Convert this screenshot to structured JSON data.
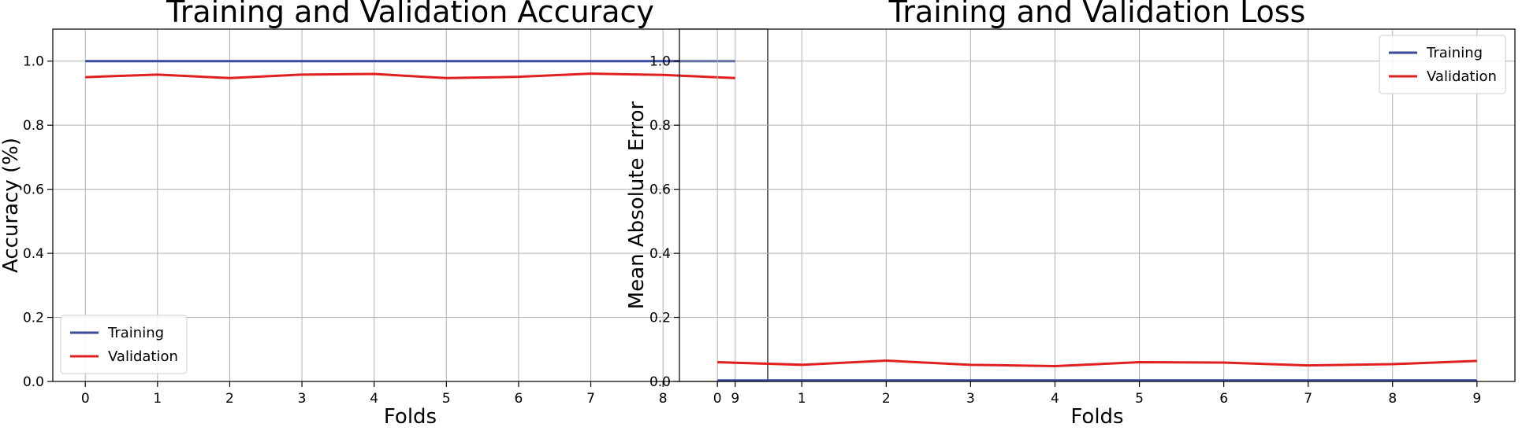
{
  "colors": {
    "training": "#3a4a9c",
    "validation": "#e02020"
  },
  "chart_data": [
    {
      "type": "line",
      "title": "Training and Validation Accuracy",
      "xlabel": "Folds",
      "ylabel": "Accuracy (%)",
      "x": [
        0,
        1,
        2,
        3,
        4,
        5,
        6,
        7,
        8,
        9
      ],
      "xticks": [
        "0",
        "1",
        "2",
        "3",
        "4",
        "5",
        "6",
        "7",
        "8",
        "9"
      ],
      "yticks": [
        "0.0",
        "0.2",
        "0.4",
        "0.6",
        "0.8",
        "1.0"
      ],
      "xlim": [
        -0.45,
        9.45
      ],
      "ylim": [
        0,
        1.1
      ],
      "grid": true,
      "legend_position": "bottom-left",
      "series": [
        {
          "name": "Training",
          "color": "#3a4a9c",
          "values": [
            1.0,
            1.0,
            1.0,
            1.0,
            1.0,
            1.0,
            1.0,
            1.0,
            1.0,
            1.0
          ]
        },
        {
          "name": "Validation",
          "color": "#e02020",
          "values": [
            0.95,
            0.958,
            0.947,
            0.958,
            0.96,
            0.947,
            0.951,
            0.961,
            0.957,
            0.947
          ]
        }
      ]
    },
    {
      "type": "line",
      "title": "Training and Validation Loss",
      "xlabel": "Folds",
      "ylabel": "Mean Absolute Error",
      "x": [
        0,
        1,
        2,
        3,
        4,
        5,
        6,
        7,
        8,
        9
      ],
      "xticks": [
        "0",
        "1",
        "2",
        "3",
        "4",
        "5",
        "6",
        "7",
        "8",
        "9"
      ],
      "yticks": [
        "0.0",
        "0.2",
        "0.4",
        "0.6",
        "0.8",
        "1.0"
      ],
      "xlim": [
        -0.45,
        9.45
      ],
      "ylim": [
        0,
        1.1
      ],
      "grid": true,
      "legend_position": "top-right",
      "series": [
        {
          "name": "Training",
          "color": "#3a4a9c",
          "values": [
            0.003,
            0.003,
            0.003,
            0.003,
            0.003,
            0.003,
            0.003,
            0.003,
            0.003,
            0.003
          ]
        },
        {
          "name": "Validation",
          "color": "#e02020",
          "values": [
            0.06,
            0.052,
            0.065,
            0.052,
            0.048,
            0.06,
            0.059,
            0.05,
            0.054,
            0.064
          ]
        }
      ]
    }
  ]
}
